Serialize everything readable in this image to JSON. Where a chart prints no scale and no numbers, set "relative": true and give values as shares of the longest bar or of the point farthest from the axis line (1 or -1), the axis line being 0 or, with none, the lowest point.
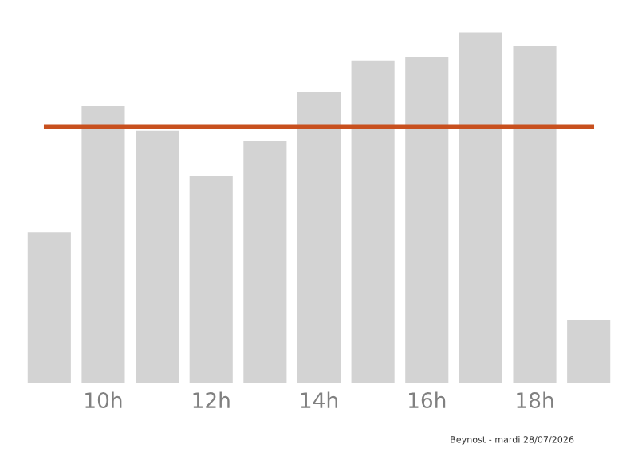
{
  "chart_data": {
    "type": "bar",
    "relative": true,
    "categories": [
      null,
      "10h",
      null,
      "12h",
      null,
      "14h",
      null,
      "16h",
      null,
      "18h",
      null
    ],
    "values": [
      0.43,
      0.79,
      0.72,
      0.59,
      0.69,
      0.83,
      0.92,
      0.93,
      1,
      0.96,
      0.18
    ],
    "color": "#d3d3d3",
    "ref_lines": [
      {
        "axis": "y",
        "value": 0.73,
        "color": "#c8501e"
      }
    ],
    "annotations": [
      "Beynost - mardi 28/07/2026"
    ],
    "grid": false,
    "legend": false
  }
}
